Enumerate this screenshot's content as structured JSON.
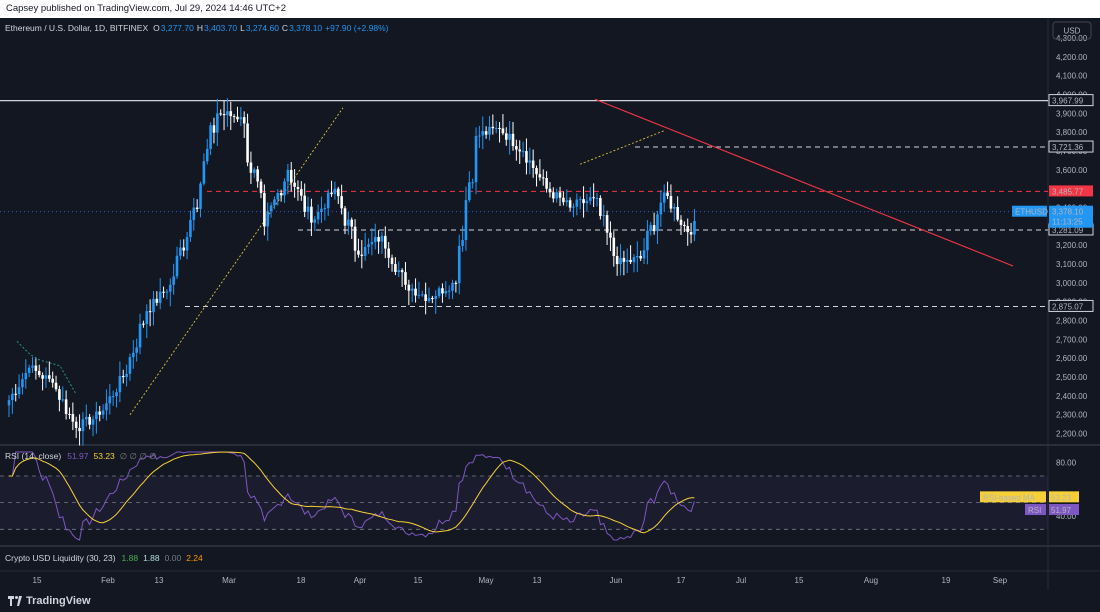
{
  "header": {
    "publisher_line": "Capsey published on TradingView.com, Jul 29, 2024 14:46 UTC+2"
  },
  "footer": {
    "brand": "TradingView"
  },
  "legend": {
    "symbol": "Ethereum / U.S. Dollar, 1D, BITFINEX",
    "o_label": "O",
    "o_value": "3,277.70",
    "h_label": "H",
    "h_value": "3,403.70",
    "l_label": "L",
    "l_value": "3,274.60",
    "c_label": "C",
    "c_value": "3,378.10",
    "change": "+97.90 (+2.98%)"
  },
  "currency": "USD",
  "price_axis_labels": [
    "4,300.00",
    "4,200.00",
    "4,100.00",
    "4,000.00",
    "3,900.00",
    "3,800.00",
    "3,700.00",
    "3,600.00",
    "3,500.00",
    "3,400.00",
    "3,300.00",
    "3,200.00",
    "3,100.00",
    "3,000.00",
    "2,900.00",
    "2,800.00",
    "2,700.00",
    "2,600.00",
    "2,500.00",
    "2,400.00",
    "2,300.00",
    "2,200.00"
  ],
  "level_tags": [
    {
      "text": "3,967.99",
      "color": "#ffffff",
      "bg": "#ffffff"
    },
    {
      "text": "3,721.36",
      "color": "#ffffff",
      "bg": "#ffffff"
    },
    {
      "text": "3,485.77",
      "color": "#ffffff",
      "bg": "#f23645"
    },
    {
      "text": "3,281.09",
      "color": "#ffffff",
      "bg": "#ffffff"
    },
    {
      "text": "2,875.07",
      "color": "#ffffff",
      "bg": "#ffffff"
    }
  ],
  "last_price": {
    "symbol_tag": "ETHUSD",
    "price": "3,378.10",
    "countdown": "11:13:25"
  },
  "rsi": {
    "title": "RSI (14, close)",
    "value": "51.97",
    "ma_value": "53.23",
    "placeholders": "∅ ∅ ∅ ∅",
    "axis_labels": [
      "80.00",
      "40.00"
    ],
    "ma_tag": "RSI-based MA",
    "ma_tag_value": "53.23",
    "rsi_tag": "RSI",
    "rsi_tag_value": "51.97"
  },
  "liquidity": {
    "title": "Crypto USD Liquidity (30, 23)",
    "v1": "1.88",
    "v2": "1.88",
    "v3": "0.00",
    "v4": "2.24"
  },
  "time_axis_labels": [
    "15",
    "Feb",
    "13",
    "Mar",
    "18",
    "Apr",
    "15",
    "May",
    "13",
    "Jun",
    "17",
    "Jul",
    "15",
    "Aug",
    "19",
    "Sep"
  ],
  "colors": {
    "up": "#2196f3",
    "down": "#ffffff",
    "bg": "#131722",
    "resistance": "#f23645",
    "rsi": "#7e57c2",
    "rsi_ma": "#f7d038",
    "accent_blue": "#2962ff"
  },
  "chart_data": {
    "type": "candlestick",
    "title": "Ethereum / U.S. Dollar, 1D, BITFINEX",
    "ylim": [
      2150,
      4380
    ],
    "ylabel": "USD",
    "horizontal_levels": [
      3967.99,
      3721.36,
      3485.77,
      3281.09,
      2875.07
    ],
    "weekly_closes_approx": [
      {
        "date": "Jan 08",
        "close": 2550
      },
      {
        "date": "Jan 15",
        "close": 2470
      },
      {
        "date": "Jan 22",
        "close": 2230
      },
      {
        "date": "Jan 29",
        "close": 2300
      },
      {
        "date": "Feb 05",
        "close": 2500
      },
      {
        "date": "Feb 12",
        "close": 2850
      },
      {
        "date": "Feb 19",
        "close": 2990
      },
      {
        "date": "Feb 26",
        "close": 3400
      },
      {
        "date": "Mar 04",
        "close": 3900
      },
      {
        "date": "Mar 11",
        "close": 3880
      },
      {
        "date": "Mar 18",
        "close": 3300
      },
      {
        "date": "Mar 25",
        "close": 3600
      },
      {
        "date": "Apr 01",
        "close": 3320
      },
      {
        "date": "Apr 08",
        "close": 3500
      },
      {
        "date": "Apr 15",
        "close": 3150
      },
      {
        "date": "Apr 22",
        "close": 3250
      },
      {
        "date": "Apr 29",
        "close": 2990
      },
      {
        "date": "May 06",
        "close": 2920
      },
      {
        "date": "May 13",
        "close": 3000
      },
      {
        "date": "May 20",
        "close": 3780
      },
      {
        "date": "May 27",
        "close": 3820
      },
      {
        "date": "Jun 03",
        "close": 3700
      },
      {
        "date": "Jun 10",
        "close": 3500
      },
      {
        "date": "Jun 17",
        "close": 3400
      },
      {
        "date": "Jun 24",
        "close": 3450
      },
      {
        "date": "Jul 01",
        "close": 3100
      },
      {
        "date": "Jul 08",
        "close": 3130
      },
      {
        "date": "Jul 15",
        "close": 3480
      },
      {
        "date": "Jul 22",
        "close": 3270
      },
      {
        "date": "Jul 29",
        "close": 3378.1
      }
    ]
  }
}
